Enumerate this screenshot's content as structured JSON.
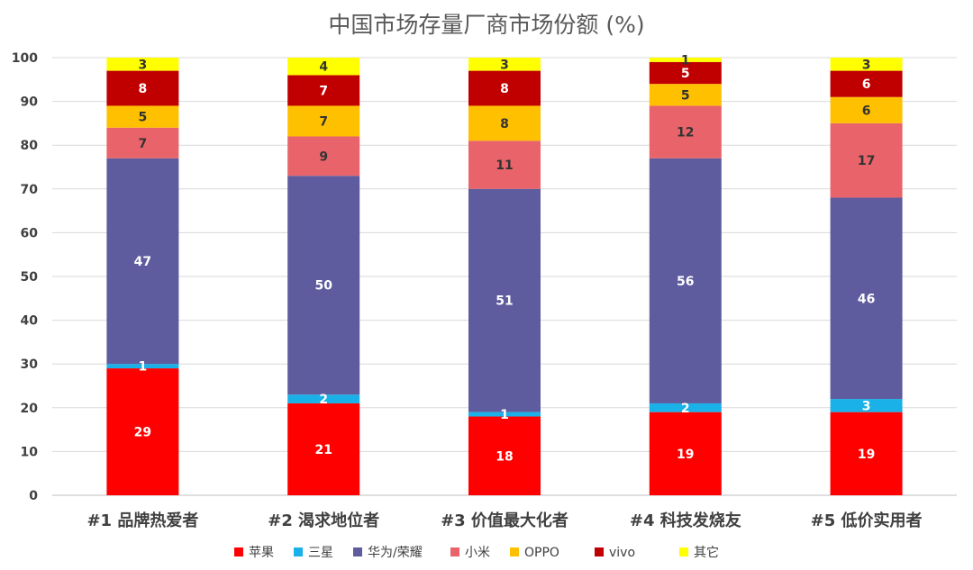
{
  "chart_data": {
    "type": "bar",
    "stacked": true,
    "title": "中国市场存量厂商市场份额 (%)",
    "xlabel": "",
    "ylabel": "",
    "ylim": [
      0,
      100
    ],
    "yticks": [
      0,
      10,
      20,
      30,
      40,
      50,
      60,
      70,
      80,
      90,
      100
    ],
    "grid": true,
    "legend_position": "bottom",
    "categories": [
      "#1 品牌热爱者",
      "#2 渴求地位者",
      "#3 价值最大化者",
      "#4 科技发烧友",
      "#5 低价实用者"
    ],
    "series": [
      {
        "name": "苹果",
        "color": "#ff0000",
        "label_color": "#ffffff",
        "values": [
          29,
          21,
          18,
          19,
          19
        ]
      },
      {
        "name": "三星",
        "color": "#1ab0e8",
        "label_color": "#ffffff",
        "values": [
          1,
          2,
          1,
          2,
          3
        ]
      },
      {
        "name": "华为/荣耀",
        "color": "#5e5b9e",
        "label_color": "#ffffff",
        "values": [
          47,
          50,
          51,
          56,
          46
        ]
      },
      {
        "name": "小米",
        "color": "#e8646a",
        "label_color": "#333333",
        "values": [
          7,
          9,
          11,
          12,
          17
        ]
      },
      {
        "name": "OPPO",
        "color": "#ffc000",
        "label_color": "#333333",
        "values": [
          5,
          7,
          8,
          5,
          6
        ]
      },
      {
        "name": "vivo",
        "color": "#c00000",
        "label_color": "#ffffff",
        "values": [
          8,
          7,
          8,
          5,
          6
        ]
      },
      {
        "name": "其它",
        "color": "#ffff00",
        "label_color": "#333333",
        "values": [
          3,
          4,
          3,
          1,
          3
        ]
      }
    ]
  }
}
